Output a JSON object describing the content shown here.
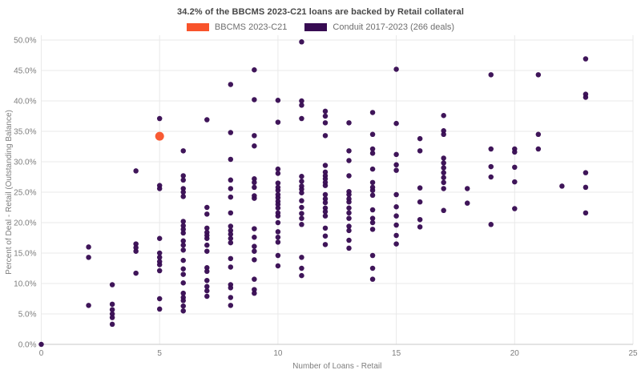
{
  "title": "34.2% of the BBCMS 2023-C21 loans are backed by Retail collateral",
  "legend": {
    "items": [
      {
        "label": "BBCMS 2023-C21",
        "color": "#f8532b"
      },
      {
        "label": "Conduit 2017-2023 (266 deals)",
        "color": "#370b52"
      }
    ]
  },
  "colors": {
    "grid": "#e9e9e9",
    "axis_line": "#d2d2d2",
    "tick_text": "#7d7d7d",
    "title_text": "#474747"
  },
  "chart_data": {
    "type": "scatter",
    "title": "34.2% of the BBCMS 2023-C21 loans are backed by Retail collateral",
    "xlabel": "Number of Loans - Retail",
    "ylabel": "Percent of Deal - Retail (Outstanding Balance)",
    "xlim": [
      0,
      25
    ],
    "ylim": [
      0,
      50
    ],
    "x_ticks": [
      "0",
      "5",
      "10",
      "15",
      "20",
      "25"
    ],
    "y_ticks": [
      "0.0%",
      "5.0%",
      "10.0%",
      "15.0%",
      "20.0%",
      "25.0%",
      "30.0%",
      "35.0%",
      "40.0%",
      "45.0%",
      "50.0%"
    ],
    "grid": true,
    "legend_position": "top-center",
    "series": [
      {
        "name": "BBCMS 2023-C21",
        "color": "#f8532b",
        "marker_size": 11,
        "points": [
          [
            5,
            34.2
          ]
        ]
      },
      {
        "name": "Conduit 2017-2023 (266 deals)",
        "color": "#370b52",
        "marker_size": 6.5,
        "points": [
          [
            0,
            0.0
          ],
          [
            2,
            16.0
          ],
          [
            2,
            14.3
          ],
          [
            2,
            6.4
          ],
          [
            3,
            9.8
          ],
          [
            3,
            6.6
          ],
          [
            3,
            5.7
          ],
          [
            3,
            5.0
          ],
          [
            3,
            4.4
          ],
          [
            3,
            3.3
          ],
          [
            4,
            28.5
          ],
          [
            4,
            16.5
          ],
          [
            4,
            15.9
          ],
          [
            4,
            15.3
          ],
          [
            4,
            11.7
          ],
          [
            5,
            37.1
          ],
          [
            5,
            26.1
          ],
          [
            5,
            25.6
          ],
          [
            5,
            17.4
          ],
          [
            5,
            15.0
          ],
          [
            5,
            14.3
          ],
          [
            5,
            13.6
          ],
          [
            5,
            13.1
          ],
          [
            5,
            12.1
          ],
          [
            5,
            7.5
          ],
          [
            5,
            5.8
          ],
          [
            6,
            31.8
          ],
          [
            6,
            27.7
          ],
          [
            6,
            27.0
          ],
          [
            6,
            25.6
          ],
          [
            6,
            25.0
          ],
          [
            6,
            24.3
          ],
          [
            6,
            20.2
          ],
          [
            6,
            19.5
          ],
          [
            6,
            18.9
          ],
          [
            6,
            18.3
          ],
          [
            6,
            17.0
          ],
          [
            6,
            16.3
          ],
          [
            6,
            15.5
          ],
          [
            6,
            13.8
          ],
          [
            6,
            12.4
          ],
          [
            6,
            11.5
          ],
          [
            6,
            10.1
          ],
          [
            6,
            8.4
          ],
          [
            6,
            7.7
          ],
          [
            6,
            7.2
          ],
          [
            6,
            6.3
          ],
          [
            6,
            5.5
          ],
          [
            7,
            36.9
          ],
          [
            7,
            22.5
          ],
          [
            7,
            21.4
          ],
          [
            7,
            19.1
          ],
          [
            7,
            18.4
          ],
          [
            7,
            17.9
          ],
          [
            7,
            17.4
          ],
          [
            7,
            16.3
          ],
          [
            7,
            15.3
          ],
          [
            7,
            12.6
          ],
          [
            7,
            12.0
          ],
          [
            7,
            10.5
          ],
          [
            7,
            9.5
          ],
          [
            7,
            8.8
          ],
          [
            7,
            7.9
          ],
          [
            8,
            42.7
          ],
          [
            8,
            34.8
          ],
          [
            8,
            30.4
          ],
          [
            8,
            27.0
          ],
          [
            8,
            25.6
          ],
          [
            8,
            24.2
          ],
          [
            8,
            21.6
          ],
          [
            8,
            19.4
          ],
          [
            8,
            18.7
          ],
          [
            8,
            18.1
          ],
          [
            8,
            17.4
          ],
          [
            8,
            16.7
          ],
          [
            8,
            14.1
          ],
          [
            8,
            12.7
          ],
          [
            8,
            9.8
          ],
          [
            8,
            9.3
          ],
          [
            8,
            7.7
          ],
          [
            8,
            6.4
          ],
          [
            9,
            45.1
          ],
          [
            9,
            40.2
          ],
          [
            9,
            34.3
          ],
          [
            9,
            32.6
          ],
          [
            9,
            27.2
          ],
          [
            9,
            26.6
          ],
          [
            9,
            25.8
          ],
          [
            9,
            24.4
          ],
          [
            9,
            24.0
          ],
          [
            9,
            19.0
          ],
          [
            9,
            17.6
          ],
          [
            9,
            16.1
          ],
          [
            9,
            15.3
          ],
          [
            9,
            13.9
          ],
          [
            9,
            10.7
          ],
          [
            9,
            9.0
          ],
          [
            9,
            8.4
          ],
          [
            10,
            40.1
          ],
          [
            10,
            36.5
          ],
          [
            10,
            28.8
          ],
          [
            10,
            28.1
          ],
          [
            10,
            26.5
          ],
          [
            10,
            25.8
          ],
          [
            10,
            25.3
          ],
          [
            10,
            24.6
          ],
          [
            10,
            24.1
          ],
          [
            10,
            23.5
          ],
          [
            10,
            23.0
          ],
          [
            10,
            22.4
          ],
          [
            10,
            21.6
          ],
          [
            10,
            21.1
          ],
          [
            10,
            20.0
          ],
          [
            10,
            18.5
          ],
          [
            10,
            17.6
          ],
          [
            10,
            16.8
          ],
          [
            10,
            14.6
          ],
          [
            10,
            12.9
          ],
          [
            11,
            49.7
          ],
          [
            11,
            40.0
          ],
          [
            11,
            39.3
          ],
          [
            11,
            37.1
          ],
          [
            11,
            27.6
          ],
          [
            11,
            26.8
          ],
          [
            11,
            26.0
          ],
          [
            11,
            25.5
          ],
          [
            11,
            24.9
          ],
          [
            11,
            23.6
          ],
          [
            11,
            22.5
          ],
          [
            11,
            21.5
          ],
          [
            11,
            20.7
          ],
          [
            11,
            19.7
          ],
          [
            11,
            14.3
          ],
          [
            11,
            12.5
          ],
          [
            11,
            11.3
          ],
          [
            12,
            38.3
          ],
          [
            12,
            37.5
          ],
          [
            12,
            36.4
          ],
          [
            12,
            34.3
          ],
          [
            12,
            29.4
          ],
          [
            12,
            28.3
          ],
          [
            12,
            27.7
          ],
          [
            12,
            27.2
          ],
          [
            12,
            26.6
          ],
          [
            12,
            26.1
          ],
          [
            12,
            24.6
          ],
          [
            12,
            23.9
          ],
          [
            12,
            23.3
          ],
          [
            12,
            22.4
          ],
          [
            12,
            21.8
          ],
          [
            12,
            21.1
          ],
          [
            12,
            19.1
          ],
          [
            12,
            17.8
          ],
          [
            12,
            16.4
          ],
          [
            13,
            36.4
          ],
          [
            13,
            31.8
          ],
          [
            13,
            30.2
          ],
          [
            13,
            27.7
          ],
          [
            13,
            25.1
          ],
          [
            13,
            24.6
          ],
          [
            13,
            23.9
          ],
          [
            13,
            23.4
          ],
          [
            13,
            22.4
          ],
          [
            13,
            21.6
          ],
          [
            13,
            20.7
          ],
          [
            13,
            19.4
          ],
          [
            13,
            18.7
          ],
          [
            13,
            17.1
          ],
          [
            13,
            15.8
          ],
          [
            14,
            38.1
          ],
          [
            14,
            34.5
          ],
          [
            14,
            32.1
          ],
          [
            14,
            31.4
          ],
          [
            14,
            28.8
          ],
          [
            14,
            26.6
          ],
          [
            14,
            25.8
          ],
          [
            14,
            25.3
          ],
          [
            14,
            24.5
          ],
          [
            14,
            22.1
          ],
          [
            14,
            20.7
          ],
          [
            14,
            20.0
          ],
          [
            14,
            18.9
          ],
          [
            14,
            14.6
          ],
          [
            14,
            12.5
          ],
          [
            14,
            10.7
          ],
          [
            15,
            45.2
          ],
          [
            15,
            36.3
          ],
          [
            15,
            31.2
          ],
          [
            15,
            29.5
          ],
          [
            15,
            28.6
          ],
          [
            15,
            24.6
          ],
          [
            15,
            22.6
          ],
          [
            15,
            21.1
          ],
          [
            15,
            19.6
          ],
          [
            15,
            17.9
          ],
          [
            15,
            16.5
          ],
          [
            16,
            33.8
          ],
          [
            16,
            31.8
          ],
          [
            16,
            25.7
          ],
          [
            16,
            23.4
          ],
          [
            16,
            20.5
          ],
          [
            16,
            19.3
          ],
          [
            17,
            37.6
          ],
          [
            17,
            35.1
          ],
          [
            17,
            34.5
          ],
          [
            17,
            30.6
          ],
          [
            17,
            29.8
          ],
          [
            17,
            29.0
          ],
          [
            17,
            28.2
          ],
          [
            17,
            27.4
          ],
          [
            17,
            26.6
          ],
          [
            17,
            25.6
          ],
          [
            17,
            22.0
          ],
          [
            18,
            25.6
          ],
          [
            18,
            23.2
          ],
          [
            19,
            44.3
          ],
          [
            19,
            32.1
          ],
          [
            19,
            29.2
          ],
          [
            19,
            27.5
          ],
          [
            19,
            19.7
          ],
          [
            20,
            32.1
          ],
          [
            20,
            31.6
          ],
          [
            20,
            29.1
          ],
          [
            20,
            26.7
          ],
          [
            20,
            22.3
          ],
          [
            21,
            44.3
          ],
          [
            21,
            34.5
          ],
          [
            21,
            32.1
          ],
          [
            22,
            26.0
          ],
          [
            23,
            46.9
          ],
          [
            23,
            41.1
          ],
          [
            23,
            40.6
          ],
          [
            23,
            28.2
          ],
          [
            23,
            25.8
          ],
          [
            23,
            21.6
          ]
        ]
      }
    ]
  }
}
